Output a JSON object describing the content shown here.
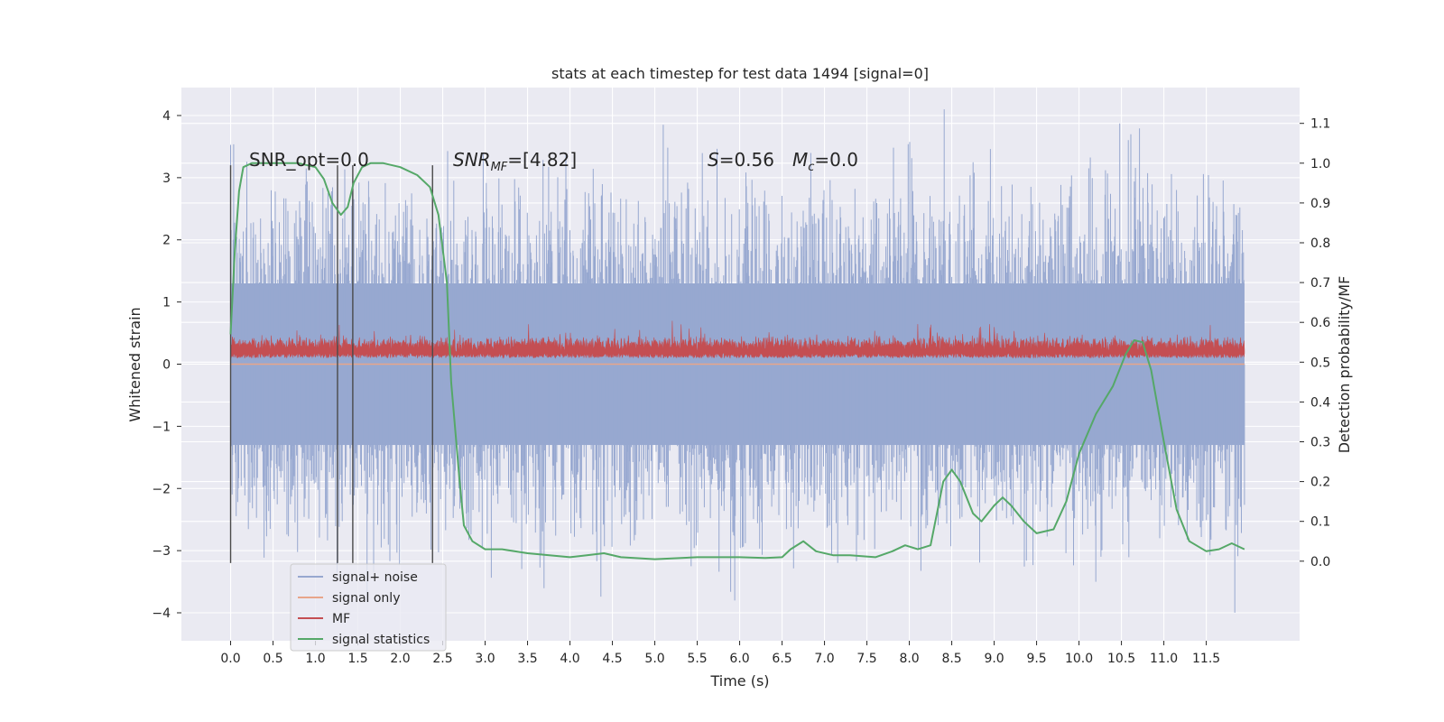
{
  "chart_data": {
    "type": "line",
    "title": "stats at each timestep for test data 1494 [signal=0]",
    "xlabel": "Time (s)",
    "ylabel": "Whitened strain",
    "ylabel_right": "Detection probability/MF",
    "xlim": [
      -0.58,
      12.6
    ],
    "ylim": [
      -4.45,
      4.45
    ],
    "ylim_right": [
      -0.2,
      1.19
    ],
    "x_ticks": [
      "0.0",
      "0.5",
      "1.0",
      "1.5",
      "2.0",
      "2.5",
      "3.0",
      "3.5",
      "4.0",
      "4.5",
      "5.0",
      "5.5",
      "6.0",
      "6.5",
      "7.0",
      "7.5",
      "8.0",
      "8.5",
      "9.0",
      "9.5",
      "10.0",
      "10.5",
      "11.0",
      "11.5"
    ],
    "y_ticks": [
      "4",
      "3",
      "2",
      "1",
      "0",
      "−1",
      "−2",
      "−3",
      "−4"
    ],
    "y_ticks_right": [
      "1.1",
      "1.0",
      "0.9",
      "0.8",
      "0.7",
      "0.6",
      "0.5",
      "0.4",
      "0.3",
      "0.2",
      "0.1",
      "0.0"
    ],
    "grid": true,
    "legend_position": "lower-left",
    "annotations": {
      "snr_opt": "SNR_opt=0.0",
      "snr_mf": "SNR",
      "snr_mf_sub": "MF",
      "snr_mf_value": "=[4.82]",
      "stat_s": "S",
      "stat_s_value": "=0.56",
      "stat_m": "M",
      "stat_m_sub": "c",
      "stat_m_value": "=0.0"
    },
    "vertical_markers": [
      0.0,
      1.26,
      1.44,
      2.38
    ],
    "series": [
      {
        "name": "signal+ noise",
        "color": "#97a8d0",
        "axis": "left",
        "envelope_x": [
          0.0,
          11.95
        ],
        "core_band": [
          -1.3,
          1.3
        ],
        "spike_range": [
          -4.1,
          4.1
        ]
      },
      {
        "name": "signal only",
        "color": "#e8a58a",
        "axis": "left",
        "x": [
          0.0,
          11.95
        ],
        "y": [
          0.0,
          0.0
        ]
      },
      {
        "name": "MF",
        "color": "#c44e52",
        "axis": "left",
        "band_range": [
          0.05,
          0.85
        ],
        "x_range": [
          0.0,
          11.95
        ]
      },
      {
        "name": "signal statistics",
        "color": "#55a868",
        "axis": "right",
        "x": [
          0.0,
          0.05,
          0.1,
          0.15,
          0.25,
          0.5,
          0.8,
          1.0,
          1.1,
          1.2,
          1.3,
          1.38,
          1.45,
          1.55,
          1.65,
          1.8,
          2.0,
          2.2,
          2.35,
          2.45,
          2.55,
          2.6,
          2.7,
          2.75,
          2.85,
          3.0,
          3.2,
          3.5,
          4.0,
          4.2,
          4.4,
          4.6,
          5.0,
          5.5,
          6.0,
          6.3,
          6.5,
          6.6,
          6.75,
          6.9,
          7.1,
          7.3,
          7.6,
          7.8,
          7.95,
          8.1,
          8.25,
          8.4,
          8.5,
          8.6,
          8.75,
          8.85,
          9.0,
          9.1,
          9.2,
          9.35,
          9.5,
          9.7,
          9.85,
          10.0,
          10.2,
          10.4,
          10.55,
          10.65,
          10.75,
          10.85,
          11.0,
          11.15,
          11.3,
          11.5,
          11.65,
          11.8,
          11.95
        ],
        "y": [
          0.57,
          0.78,
          0.93,
          0.99,
          1.0,
          1.0,
          1.0,
          0.99,
          0.96,
          0.9,
          0.87,
          0.89,
          0.95,
          0.99,
          1.0,
          1.0,
          0.99,
          0.97,
          0.94,
          0.87,
          0.7,
          0.45,
          0.2,
          0.09,
          0.05,
          0.03,
          0.03,
          0.02,
          0.01,
          0.015,
          0.02,
          0.01,
          0.005,
          0.01,
          0.01,
          0.008,
          0.01,
          0.03,
          0.05,
          0.025,
          0.015,
          0.015,
          0.01,
          0.025,
          0.04,
          0.03,
          0.04,
          0.2,
          0.23,
          0.2,
          0.12,
          0.1,
          0.14,
          0.16,
          0.14,
          0.1,
          0.07,
          0.08,
          0.15,
          0.27,
          0.37,
          0.44,
          0.52,
          0.555,
          0.55,
          0.48,
          0.3,
          0.13,
          0.05,
          0.025,
          0.03,
          0.045,
          0.03
        ]
      }
    ]
  }
}
